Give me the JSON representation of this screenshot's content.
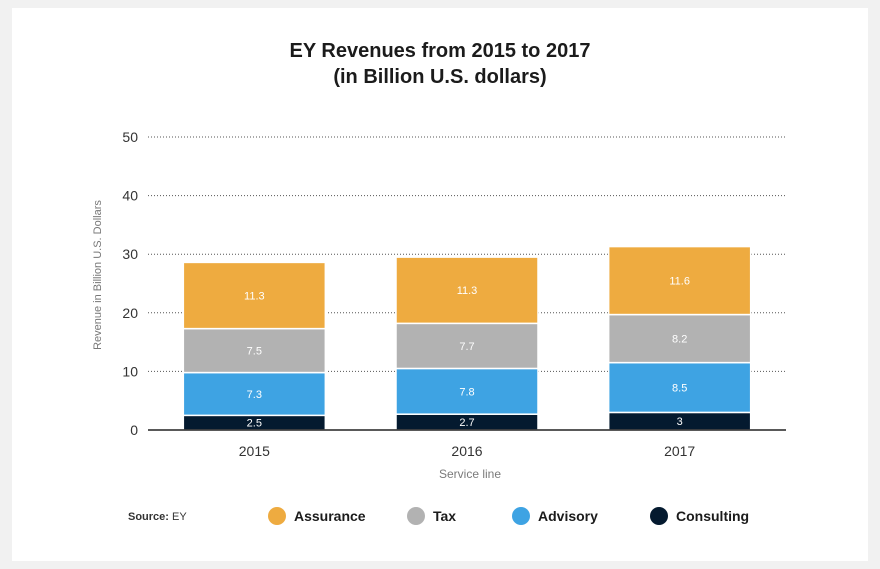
{
  "title_line1": "EY Revenues from 2015 to 2017",
  "title_line2": "(in Billion  U.S. dollars)",
  "source_label": "Source:",
  "source_value": "EY",
  "chart_data": {
    "type": "bar",
    "stacked": true,
    "categories": [
      "2015",
      "2016",
      "2017"
    ],
    "series": [
      {
        "name": "Consulting",
        "color": "#041a2f",
        "values": [
          2.5,
          2.7,
          3
        ]
      },
      {
        "name": "Advisory",
        "color": "#3ea3e3",
        "values": [
          7.3,
          7.8,
          8.5
        ]
      },
      {
        "name": "Tax",
        "color": "#b2b2b2",
        "values": [
          7.5,
          7.7,
          8.2
        ]
      },
      {
        "name": "Assurance",
        "color": "#eeab40",
        "values": [
          11.3,
          11.3,
          11.6
        ]
      }
    ],
    "data_labels": [
      [
        "2.5",
        "2.7",
        "3"
      ],
      [
        "7.3",
        "7.8",
        "8.5"
      ],
      [
        "7.5",
        "7.7",
        "8.2"
      ],
      [
        "11.3",
        "11.3",
        "11.6"
      ]
    ],
    "xlabel": "Service line",
    "ylabel": "Revenue in Billion U.S. Dollars",
    "ylim": [
      0,
      50
    ],
    "yticks": [
      0,
      10,
      20,
      30,
      40,
      50
    ],
    "grid": true,
    "legend": {
      "placement": "bottom",
      "order": [
        "Assurance",
        "Tax",
        "Advisory",
        "Consulting"
      ]
    }
  }
}
